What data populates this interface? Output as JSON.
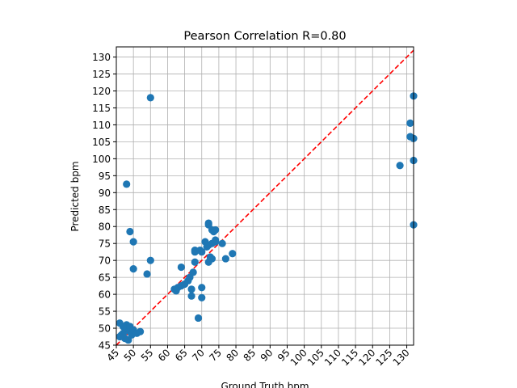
{
  "chart_data": {
    "type": "scatter",
    "title": "Pearson Correlation R=0.80",
    "xlabel": "Ground Truth bpm",
    "ylabel": "Predicted bpm",
    "xlim": [
      45,
      132
    ],
    "ylim": [
      45,
      133
    ],
    "xticks": [
      45,
      50,
      55,
      60,
      65,
      70,
      75,
      80,
      85,
      90,
      95,
      100,
      105,
      110,
      115,
      120,
      125,
      130
    ],
    "yticks": [
      45,
      50,
      55,
      60,
      65,
      70,
      75,
      80,
      85,
      90,
      95,
      100,
      105,
      110,
      115,
      120,
      125,
      130
    ],
    "grid": true,
    "colors": {
      "points": "#1f77b4",
      "reference_line": "#ff0000",
      "grid": "#b0b0b0"
    },
    "reference_line": {
      "style": "dashed",
      "from": [
        45,
        45
      ],
      "to": [
        132,
        132
      ]
    },
    "points": [
      [
        46,
        51.5
      ],
      [
        46.5,
        48
      ],
      [
        47,
        48.5
      ],
      [
        47.5,
        47
      ],
      [
        48,
        50
      ],
      [
        48,
        51
      ],
      [
        48.5,
        46.5
      ],
      [
        49,
        49
      ],
      [
        49,
        50.5
      ],
      [
        49.5,
        48
      ],
      [
        50,
        49.5
      ],
      [
        51,
        48.5
      ],
      [
        52,
        49
      ],
      [
        46,
        47.5
      ],
      [
        47,
        50.5
      ],
      [
        48,
        92.5
      ],
      [
        49,
        78.5
      ],
      [
        50,
        75.5
      ],
      [
        50,
        67.5
      ],
      [
        54,
        66
      ],
      [
        55,
        70
      ],
      [
        55,
        118
      ],
      [
        62,
        61.5
      ],
      [
        62.5,
        61
      ],
      [
        63,
        62
      ],
      [
        64,
        62.5
      ],
      [
        64,
        68
      ],
      [
        65,
        63
      ],
      [
        66,
        64
      ],
      [
        66.5,
        65
      ],
      [
        67,
        59.5
      ],
      [
        67,
        61.5
      ],
      [
        67.5,
        66.5
      ],
      [
        68,
        69.5
      ],
      [
        68,
        72.5
      ],
      [
        68,
        73
      ],
      [
        69,
        53
      ],
      [
        69.5,
        73
      ],
      [
        70,
        59
      ],
      [
        70,
        62
      ],
      [
        70,
        72.5
      ],
      [
        71,
        75.5
      ],
      [
        71.5,
        74
      ],
      [
        72,
        81
      ],
      [
        72,
        80.5
      ],
      [
        72,
        74.5
      ],
      [
        72,
        69.5
      ],
      [
        72.5,
        71
      ],
      [
        73,
        79
      ],
      [
        73,
        75
      ],
      [
        73,
        70.5
      ],
      [
        73.5,
        78.5
      ],
      [
        74,
        79
      ],
      [
        74,
        76
      ],
      [
        74,
        75.5
      ],
      [
        76,
        75
      ],
      [
        77,
        70.5
      ],
      [
        79,
        72
      ],
      [
        128,
        98
      ],
      [
        131,
        110.5
      ],
      [
        131,
        106.5
      ],
      [
        132,
        118.5
      ],
      [
        132,
        106
      ],
      [
        132,
        99.5
      ],
      [
        132,
        80.5
      ]
    ]
  }
}
